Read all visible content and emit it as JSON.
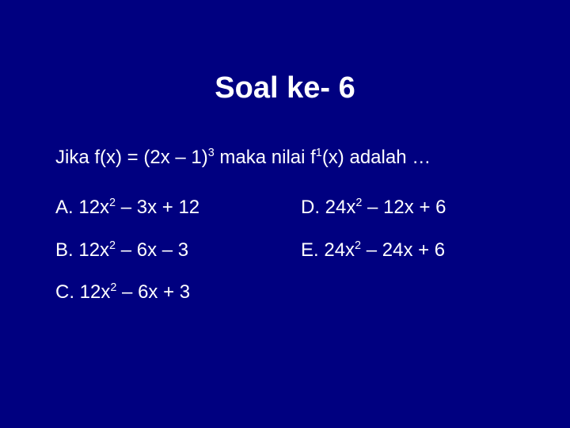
{
  "slide": {
    "background_color": "#000080",
    "text_color": "#ffffff",
    "title_fontsize": 38,
    "body_fontsize": 24,
    "font_family": "Verdana"
  },
  "title": "Soal ke- 6",
  "question_prefix": "Jika f(x) = (2x – 1)",
  "question_exp1": "3",
  "question_mid": " maka nilai f",
  "question_exp2": "1",
  "question_suffix": "(x) adalah …",
  "options": {
    "a": {
      "label": "A. 12x",
      "exp": "2",
      "tail": " – 3x + 12"
    },
    "b": {
      "label": "B. 12x",
      "exp": "2",
      "tail": " – 6x – 3"
    },
    "c": {
      "label": "C. 12x",
      "exp": "2",
      "tail": " – 6x + 3"
    },
    "d": {
      "label": "D. 24x",
      "exp": "2",
      "tail": " – 12x + 6"
    },
    "e": {
      "label": "E. 24x",
      "exp": "2",
      "tail": " – 24x + 6"
    }
  }
}
